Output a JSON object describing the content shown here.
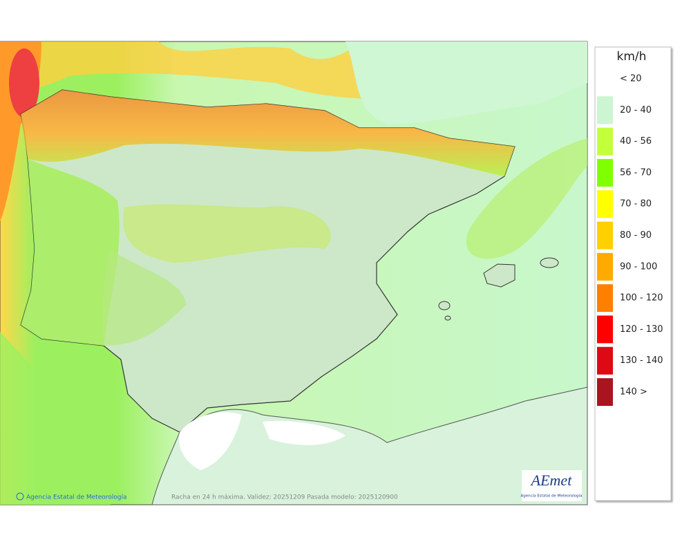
{
  "legend": {
    "title": "km/h",
    "items": [
      {
        "label": "< 20",
        "color": null
      },
      {
        "label": "20 - 40",
        "color": "#ccf5d2"
      },
      {
        "label": "40 - 56",
        "color": "#c4ff3c"
      },
      {
        "label": "56 - 70",
        "color": "#80ff00"
      },
      {
        "label": "70 - 80",
        "color": "#ffff00"
      },
      {
        "label": "80 - 90",
        "color": "#ffd000"
      },
      {
        "label": "90 - 100",
        "color": "#ffaa00"
      },
      {
        "label": "100 - 120",
        "color": "#ff8000"
      },
      {
        "label": "120 - 130",
        "color": "#ff0000"
      },
      {
        "label": "130 - 140",
        "color": "#dd0a14"
      },
      {
        "label": "140 >",
        "color": "#aa1420"
      }
    ]
  },
  "footer": {
    "credit": "Agencia Estatal de Meteorología",
    "caption": "Racha en 24 h máxima. Validez: 20251209 Pasada modelo: 2025120900"
  },
  "logo": {
    "name": "AEmet",
    "subtitle": "Agencia Estatal de Meteorología"
  }
}
